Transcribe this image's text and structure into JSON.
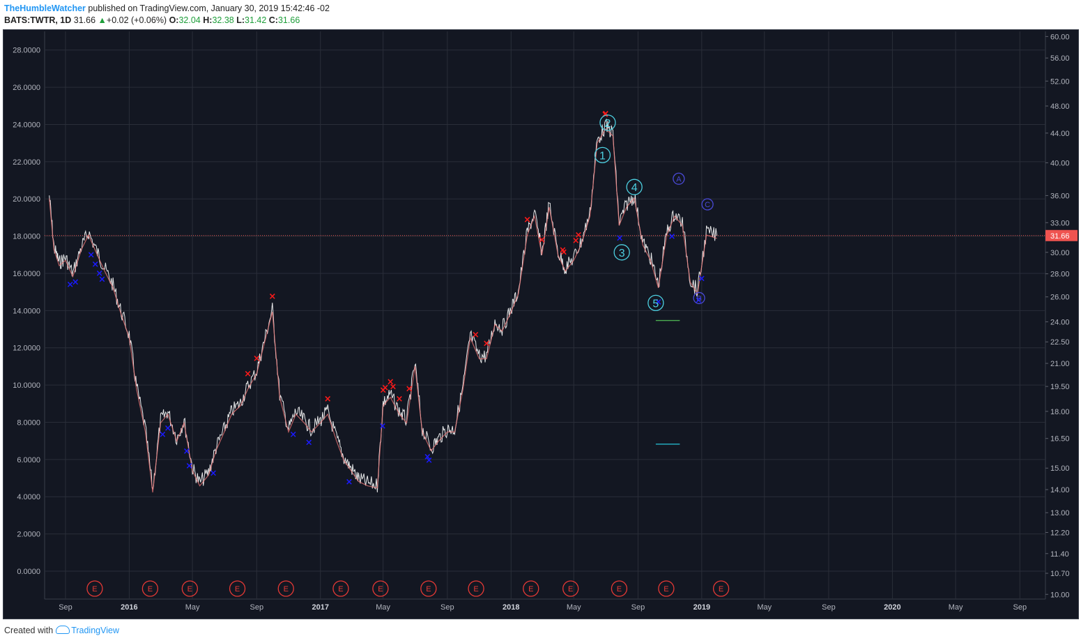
{
  "header": {
    "author": "TheHumbleWatcher",
    "published": "published on TradingView.com, January 30, 2019 15:42:46 -02",
    "symbol": "BATS:TWTR, 1D",
    "last": "31.66",
    "change_arrow": "▲",
    "change": "+0.02 (+0.06%)",
    "o_label": "O:",
    "o_value": "32.04",
    "h_label": "H:",
    "h_value": "32.38",
    "l_label": "L:",
    "l_value": "31.42",
    "c_label": "C:",
    "c_value": "31.66"
  },
  "footer": {
    "created_with": "Created with",
    "brand": "TradingView"
  },
  "colors": {
    "background": "#131722",
    "grid": "#2a2e39",
    "candle": "#ffffff",
    "ma": "#e57373",
    "sell_marker": "#ff1a1a",
    "buy_marker": "#1a1aff",
    "wave_label": "#4dd0e1",
    "abc_label": "#4a4ad8",
    "earnings": "#e53935",
    "price_line": "#ef5350"
  },
  "chart_data": {
    "type": "line",
    "title": "",
    "left_axis": {
      "ticks": [
        "28.0000",
        "26.0000",
        "24.0000",
        "22.0000",
        "20.0000",
        "18.0000",
        "16.0000",
        "14.0000",
        "12.0000",
        "10.0000",
        "8.0000",
        "6.0000",
        "4.0000",
        "2.0000",
        "0.0000"
      ],
      "range": [
        -1.5,
        29.0
      ]
    },
    "right_axis": {
      "scale": "log",
      "ticks": [
        "60.00",
        "56.00",
        "52.00",
        "48.00",
        "44.00",
        "40.00",
        "36.00",
        "33.00",
        "30.00",
        "28.00",
        "26.00",
        "24.00",
        "22.50",
        "21.00",
        "19.50",
        "18.00",
        "16.50",
        "15.00",
        "14.00",
        "13.00",
        "12.20",
        "11.40",
        "10.70",
        "10.00"
      ],
      "range": [
        9.85,
        61.0
      ]
    },
    "x_axis": {
      "ticks": [
        "Sep",
        "2016",
        "May",
        "Sep",
        "2017",
        "May",
        "Sep",
        "2018",
        "May",
        "Sep",
        "2019",
        "May",
        "Sep",
        "2020",
        "May",
        "Sep"
      ],
      "bold_ticks": [
        "2016",
        "2017",
        "2018",
        "2019",
        "2020"
      ],
      "range": [
        "2015-07-23",
        "2020-10-20"
      ]
    },
    "last_price": "31.66",
    "series": [
      {
        "x": [
          "2015-08-01",
          "2015-08-10",
          "2015-08-20",
          "2015-09-01",
          "2015-09-15",
          "2015-10-01",
          "2015-10-15",
          "2015-11-01",
          "2015-11-15",
          "2015-12-01",
          "2015-12-15",
          "2016-01-01",
          "2016-01-15",
          "2016-02-01",
          "2016-02-15",
          "2016-03-01",
          "2016-03-15",
          "2016-04-01",
          "2016-04-15",
          "2016-05-01",
          "2016-05-15",
          "2016-06-01",
          "2016-06-15",
          "2016-07-01",
          "2016-07-15",
          "2016-08-01",
          "2016-08-15",
          "2016-09-01",
          "2016-09-15",
          "2016-10-01",
          "2016-10-15",
          "2016-11-01",
          "2016-11-15",
          "2016-12-01",
          "2016-12-15",
          "2017-01-01",
          "2017-01-15",
          "2017-02-01",
          "2017-02-15",
          "2017-03-01",
          "2017-03-15",
          "2017-04-01",
          "2017-04-20",
          "2017-05-01",
          "2017-05-15",
          "2017-06-01",
          "2017-06-15",
          "2017-07-01",
          "2017-07-15",
          "2017-08-01",
          "2017-08-15",
          "2017-09-01",
          "2017-09-15",
          "2017-10-01",
          "2017-10-15",
          "2017-11-01",
          "2017-11-15",
          "2017-12-01",
          "2017-12-15",
          "2018-01-01",
          "2018-01-15",
          "2018-02-01",
          "2018-02-15",
          "2018-03-01",
          "2018-03-15",
          "2018-04-01",
          "2018-04-15",
          "2018-05-01",
          "2018-05-15",
          "2018-06-01",
          "2018-06-15",
          "2018-07-01",
          "2018-07-15",
          "2018-07-27",
          "2018-08-10",
          "2018-08-25",
          "2018-09-10",
          "2018-09-25",
          "2018-10-10",
          "2018-10-26",
          "2018-11-10",
          "2018-11-25",
          "2018-12-10",
          "2018-12-24",
          "2019-01-10",
          "2019-01-30"
        ],
        "y": [
          36.0,
          30.5,
          29.0,
          29.5,
          28.0,
          30.5,
          32.0,
          30.0,
          28.5,
          27.0,
          25.0,
          23.0,
          19.5,
          17.0,
          14.0,
          17.5,
          18.0,
          16.5,
          17.5,
          15.0,
          14.3,
          14.8,
          16.0,
          17.0,
          18.0,
          18.5,
          19.5,
          20.5,
          22.5,
          25.0,
          19.0,
          17.0,
          18.0,
          17.5,
          17.0,
          17.5,
          18.0,
          16.5,
          15.5,
          15.0,
          14.5,
          14.3,
          14.2,
          18.5,
          19.0,
          18.0,
          17.5,
          21.0,
          17.0,
          16.0,
          16.5,
          17.0,
          17.0,
          19.5,
          23.0,
          21.5,
          21.5,
          24.0,
          23.5,
          25.0,
          26.5,
          32.0,
          34.0,
          30.0,
          35.0,
          30.0,
          28.5,
          29.5,
          31.0,
          34.0,
          43.0,
          45.0,
          44.0,
          33.0,
          35.0,
          36.0,
          31.0,
          29.5,
          27.0,
          32.0,
          34.0,
          33.0,
          27.5,
          26.5,
          32.0,
          31.66
        ],
        "note": "approximate closing prices (right-axis units)"
      }
    ],
    "sell_markers_x": [
      "2018-03-01",
      "2018-04-10",
      "2018-04-12",
      "2018-05-05",
      "2018-05-10",
      "2018-06-30",
      "2018-07-01",
      "2017-01-15",
      "2017-05-01",
      "2017-05-05",
      "2017-05-15",
      "2017-05-20",
      "2017-06-01",
      "2017-06-20",
      "2017-10-25",
      "2017-11-15",
      "2018-02-01",
      "2016-08-15",
      "2016-09-01",
      "2016-10-01"
    ],
    "buy_markers_x": [
      "2015-09-10",
      "2015-09-20",
      "2015-10-20",
      "2015-10-28",
      "2015-11-05",
      "2015-11-10",
      "2016-03-05",
      "2016-03-15",
      "2016-04-20",
      "2016-04-25",
      "2016-06-10",
      "2016-11-10",
      "2016-12-10",
      "2017-02-25",
      "2017-04-30",
      "2017-07-25",
      "2017-07-28",
      "2018-07-28",
      "2018-10-10",
      "2018-11-05",
      "2018-12-26",
      "2019-01-01"
    ],
    "wave_labels": [
      {
        "label": "1",
        "x": "2018-06-25",
        "y": 41.0
      },
      {
        "label": "2",
        "x": "2018-07-05",
        "y": 45.5
      },
      {
        "label": "3",
        "x": "2018-08-01",
        "y": 30.0
      },
      {
        "label": "4",
        "x": "2018-08-25",
        "y": 37.0
      },
      {
        "label": "5",
        "x": "2018-10-05",
        "y": 25.5
      },
      {
        "label": "A",
        "x": "2018-11-18",
        "y": 38.0
      },
      {
        "label": "B",
        "x": "2018-12-27",
        "y": 25.9
      },
      {
        "label": "C",
        "x": "2019-01-12",
        "y": 35.0
      }
    ],
    "earnings_label": "E",
    "earnings_x": [
      "2015-10-27",
      "2016-02-10",
      "2016-04-26",
      "2016-07-26",
      "2016-10-27",
      "2017-02-09",
      "2017-04-26",
      "2017-07-27",
      "2017-10-26",
      "2018-02-08",
      "2018-04-25",
      "2018-07-27",
      "2018-10-25",
      "2019-02-07"
    ],
    "horizontal_segments": [
      {
        "color": "#4caf50",
        "x": [
          "2018-10-05",
          "2018-11-20"
        ],
        "y": 24.1
      },
      {
        "color": "#26c6da",
        "x": [
          "2018-10-05",
          "2018-11-20"
        ],
        "y": 16.2
      }
    ]
  }
}
